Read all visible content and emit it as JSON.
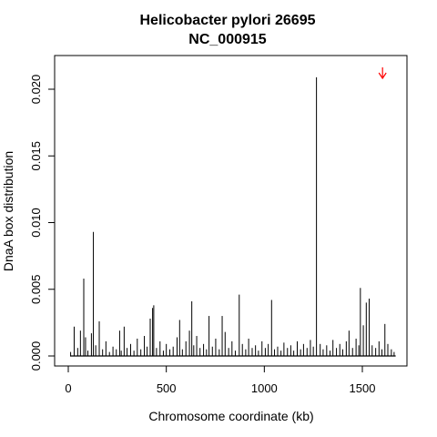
{
  "chart_data": {
    "type": "bar",
    "title": "Helicobacter pylori 26695",
    "subtitle": "NC_000915",
    "xlabel": "Chromosome coordinate (kb)",
    "ylabel": "DnaA box distribution",
    "xlim": [
      0,
      1700
    ],
    "ylim": [
      0,
      0.022
    ],
    "x_ticks": [
      0,
      500,
      1000,
      1500
    ],
    "x_tick_labels": [
      "0",
      "500",
      "1000",
      "1500"
    ],
    "y_ticks": [
      0.0,
      0.005,
      0.01,
      0.015,
      0.02
    ],
    "y_tick_labels": [
      "0.000",
      "0.005",
      "0.010",
      "0.015",
      "0.020"
    ],
    "grid": false,
    "marker": {
      "type": "arrow",
      "x": 1603,
      "color": "#ff0000"
    },
    "x": [
      12,
      30,
      48,
      62,
      79,
      88,
      100,
      118,
      128,
      140,
      158,
      175,
      192,
      210,
      228,
      245,
      262,
      270,
      285,
      300,
      318,
      335,
      352,
      370,
      388,
      402,
      418,
      430,
      436,
      450,
      468,
      485,
      500,
      518,
      535,
      555,
      568,
      582,
      600,
      618,
      630,
      640,
      655,
      672,
      690,
      705,
      718,
      735,
      752,
      770,
      785,
      800,
      818,
      835,
      852,
      872,
      888,
      905,
      920,
      938,
      955,
      970,
      988,
      1005,
      1020,
      1037,
      1052,
      1068,
      1085,
      1100,
      1118,
      1135,
      1150,
      1168,
      1185,
      1200,
      1218,
      1235,
      1250,
      1266,
      1285,
      1300,
      1318,
      1335,
      1350,
      1368,
      1385,
      1400,
      1418,
      1432,
      1450,
      1468,
      1482,
      1490,
      1505,
      1520,
      1535,
      1550,
      1568,
      1585,
      1600,
      1615,
      1630,
      1648,
      1662
    ],
    "values": [
      0.0003,
      0.0022,
      0.0006,
      0.0019,
      0.0058,
      0.0014,
      0.0004,
      0.0017,
      0.0093,
      0.0008,
      0.0026,
      0.0005,
      0.0011,
      0.0003,
      0.0007,
      0.0005,
      0.0019,
      0.0004,
      0.0022,
      0.0006,
      0.0009,
      0.0004,
      0.0013,
      0.0005,
      0.0015,
      0.0007,
      0.0028,
      0.0036,
      0.0038,
      0.0006,
      0.0011,
      0.0004,
      0.0009,
      0.0005,
      0.0007,
      0.0014,
      0.0027,
      0.0005,
      0.0011,
      0.0019,
      0.0041,
      0.0008,
      0.0015,
      0.0006,
      0.0009,
      0.0005,
      0.003,
      0.0007,
      0.0013,
      0.0005,
      0.003,
      0.0018,
      0.0006,
      0.0011,
      0.0004,
      0.0046,
      0.0009,
      0.0005,
      0.0013,
      0.0006,
      0.0008,
      0.0004,
      0.0011,
      0.0006,
      0.0009,
      0.0042,
      0.0005,
      0.0007,
      0.0004,
      0.001,
      0.0006,
      0.0008,
      0.0004,
      0.0011,
      0.0005,
      0.0009,
      0.0006,
      0.0012,
      0.0007,
      0.0209,
      0.0009,
      0.0005,
      0.0008,
      0.0004,
      0.0012,
      0.0006,
      0.0009,
      0.0005,
      0.0011,
      0.0019,
      0.0006,
      0.0013,
      0.0008,
      0.0051,
      0.0023,
      0.004,
      0.0043,
      0.0008,
      0.0006,
      0.0011,
      0.0005,
      0.0024,
      0.0009,
      0.0005,
      0.0003
    ]
  }
}
